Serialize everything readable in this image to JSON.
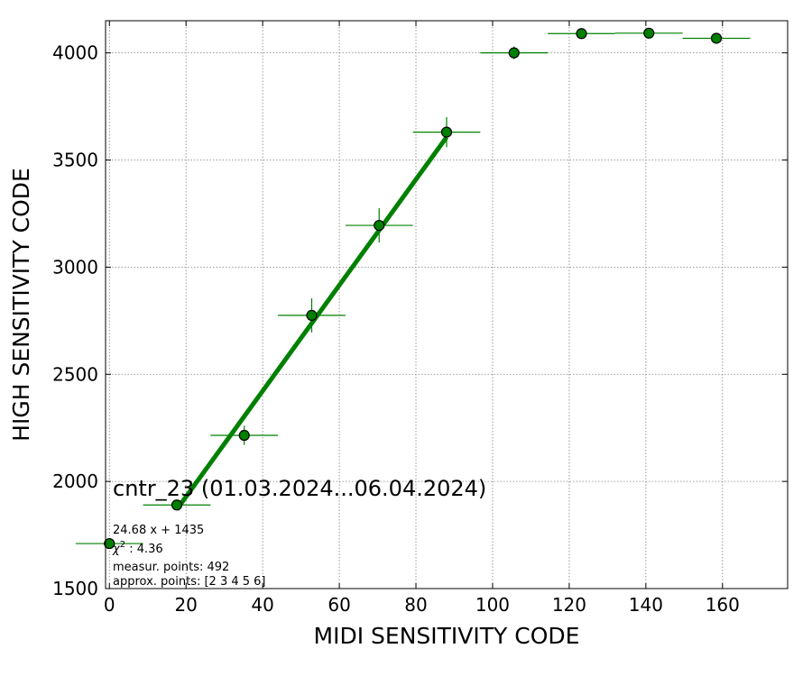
{
  "chart_data": {
    "type": "scatter",
    "xlabel": "MIDI SENSITIVITY CODE",
    "ylabel": "HIGH SENSITIVITY CODE",
    "xlim": [
      -1,
      177
    ],
    "ylim": [
      1500,
      4150
    ],
    "xticks": [
      "0",
      "20",
      "40",
      "60",
      "80",
      "100",
      "120",
      "140",
      "160"
    ],
    "yticks": [
      "1500",
      "2000",
      "2500",
      "3000",
      "3500",
      "4000"
    ],
    "grid": true,
    "colors": {
      "marker": "#008000",
      "marker_edge": "#000000",
      "fit_line": "#008000",
      "error_bars": "#008000",
      "grid": "#808080"
    },
    "points": [
      {
        "x": 0,
        "y": 1710,
        "xerr": 8.8,
        "yerr": 0
      },
      {
        "x": 17.6,
        "y": 1890,
        "xerr": 8.8,
        "yerr": 15
      },
      {
        "x": 35.2,
        "y": 2215,
        "xerr": 8.8,
        "yerr": 45
      },
      {
        "x": 52.8,
        "y": 2775,
        "xerr": 8.8,
        "yerr": 80
      },
      {
        "x": 70.4,
        "y": 3195,
        "xerr": 8.8,
        "yerr": 80
      },
      {
        "x": 88.0,
        "y": 3630,
        "xerr": 8.8,
        "yerr": 70
      },
      {
        "x": 105.6,
        "y": 4000,
        "xerr": 8.8,
        "yerr": 30
      },
      {
        "x": 123.2,
        "y": 4090,
        "xerr": 8.8,
        "yerr": 8
      },
      {
        "x": 140.8,
        "y": 4092,
        "xerr": 8.8,
        "yerr": 8
      },
      {
        "x": 158.4,
        "y": 4068,
        "xerr": 8.8,
        "yerr": 8
      }
    ],
    "fit": {
      "slope": 24.68,
      "intercept": 1435,
      "x_from": 17.6,
      "x_to": 88.0
    },
    "annotations": {
      "title": "cntr_23 (01.03.2024...06.04.2024)",
      "equation": "24.68 x + 1435",
      "chi2_symbol": "χ",
      "chi2_exp": "2",
      "chi2_value": " : 4.36",
      "measur_points": "measur. points: 492",
      "approx_points": "approx. points: [2 3 4 5 6]"
    }
  }
}
